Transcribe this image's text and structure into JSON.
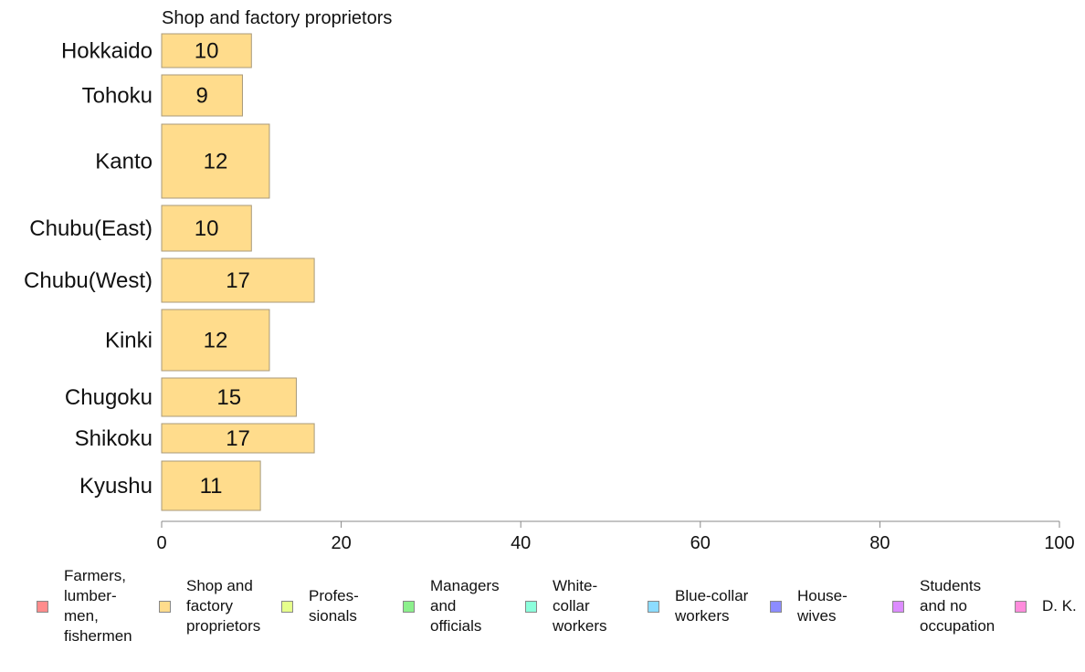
{
  "chart_data": {
    "type": "bar",
    "orientation": "horizontal",
    "title": "Shop and factory proprietors",
    "categories": [
      "Hokkaido",
      "Tohoku",
      "Kanto",
      "Chubu(East)",
      "Chubu(West)",
      "Kinki",
      "Chugoku",
      "Shikoku",
      "Kyushu"
    ],
    "values": [
      10,
      9,
      12,
      10,
      17,
      12,
      15,
      17,
      11
    ],
    "value_labels": [
      "10",
      "9",
      "12",
      "10",
      "17",
      "12",
      "15",
      "17",
      "11"
    ],
    "bar_color": "#FFDC8C",
    "xlim": [
      0,
      100
    ],
    "xticks": [
      0,
      20,
      40,
      60,
      80,
      100
    ],
    "xtick_labels": [
      "0",
      "20",
      "40",
      "60",
      "80",
      "100"
    ],
    "grid": false,
    "legend_placement": "bottom"
  },
  "legend": [
    {
      "label": "Farmers,\nlumber-\nmen,\nfishermen",
      "color": "#FF8C8C"
    },
    {
      "label": "Shop and\nfactory\nproprietors",
      "color": "#FFDC8C"
    },
    {
      "label": "Profes-\nsionals",
      "color": "#E6FF8C"
    },
    {
      "label": "Managers\nand\nofficials",
      "color": "#8CF08C"
    },
    {
      "label": "White-\ncollar\nworkers",
      "color": "#8CFFDC"
    },
    {
      "label": "Blue-collar\nworkers",
      "color": "#8CDCFF"
    },
    {
      "label": "House-\nwives",
      "color": "#8C8CFF"
    },
    {
      "label": "Students\nand no\noccupation",
      "color": "#DC8CFF"
    },
    {
      "label": "D. K.",
      "color": "#FF8CDC"
    }
  ]
}
